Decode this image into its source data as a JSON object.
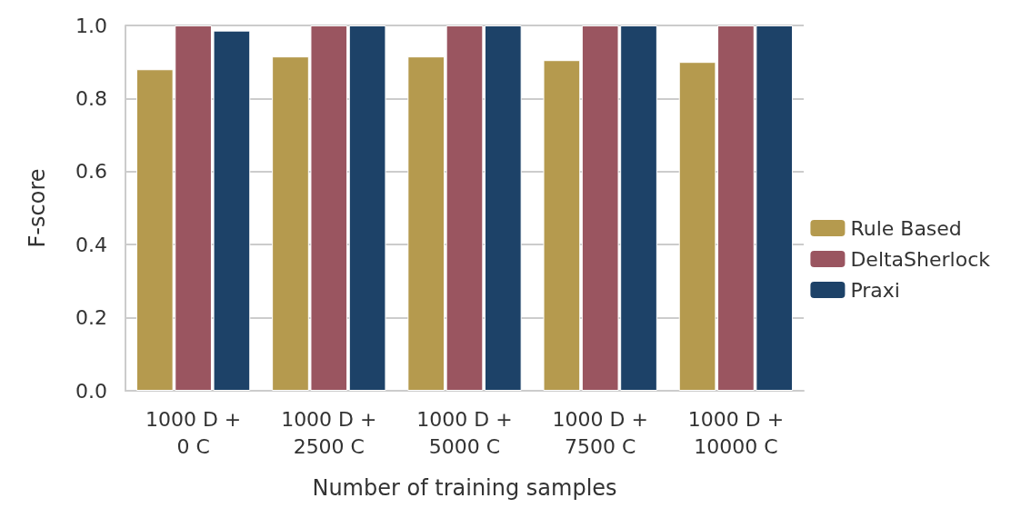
{
  "chart_data": {
    "type": "bar",
    "xlabel": "Number of training samples",
    "ylabel": "F-score",
    "categories": [
      "1000 D +\n0 C",
      "1000 D +\n2500 C",
      "1000 D +\n5000 C",
      "1000 D +\n7500 C",
      "1000 D +\n10000 C"
    ],
    "series": [
      {
        "name": "Rule Based",
        "color": "#b59a4e",
        "values": [
          0.88,
          0.915,
          0.915,
          0.905,
          0.9
        ]
      },
      {
        "name": "DeltaSherlock",
        "color": "#9a5560",
        "values": [
          1.0,
          1.0,
          1.0,
          1.0,
          1.0
        ]
      },
      {
        "name": "Praxi",
        "color": "#1d4268",
        "values": [
          0.986,
          1.0,
          1.0,
          1.0,
          1.0
        ]
      }
    ],
    "ylim": [
      0,
      1
    ],
    "yticks": [
      {
        "value": 0,
        "label": "0.0"
      },
      {
        "value": 0.2,
        "label": "0.2"
      },
      {
        "value": 0.4,
        "label": "0.4"
      },
      {
        "value": 0.6,
        "label": "0.6"
      },
      {
        "value": 0.8,
        "label": "0.8"
      },
      {
        "value": 1,
        "label": "1.0"
      }
    ],
    "grid": "y",
    "legend": "right"
  }
}
